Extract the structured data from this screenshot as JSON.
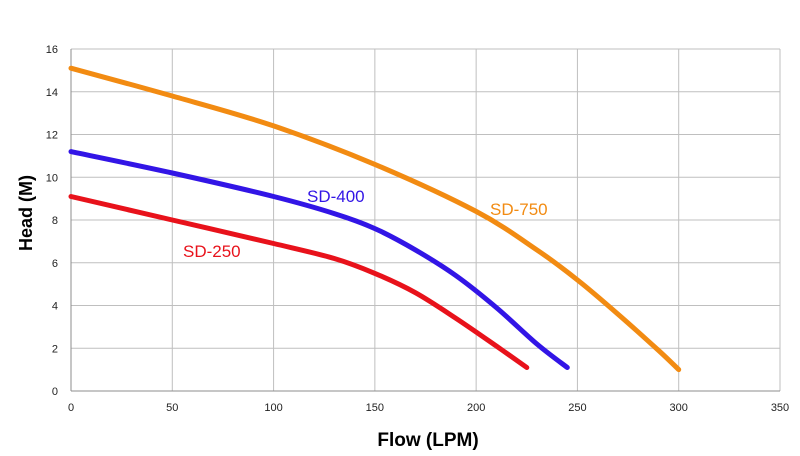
{
  "chart_data": {
    "type": "line",
    "title": "",
    "xlabel": "Flow (LPM)",
    "ylabel": "Head (M)",
    "xlim": [
      0,
      350
    ],
    "ylim": [
      0,
      16
    ],
    "xticks": [
      "0",
      "50",
      "100",
      "150",
      "200",
      "250",
      "300",
      "350"
    ],
    "yticks": [
      "0",
      "2",
      "4",
      "6",
      "8",
      "10",
      "12",
      "14",
      "16"
    ],
    "grid": true,
    "series": [
      {
        "name": "SD-250",
        "color": "#e8121b",
        "x": [
          0,
          50,
          100,
          130,
          150,
          170,
          190,
          210,
          225
        ],
        "y": [
          9.1,
          8.0,
          6.9,
          6.2,
          5.5,
          4.6,
          3.4,
          2.1,
          1.1
        ]
      },
      {
        "name": "SD-400",
        "color": "#3215e6",
        "x": [
          0,
          50,
          100,
          130,
          150,
          170,
          190,
          210,
          230,
          245
        ],
        "y": [
          11.2,
          10.2,
          9.1,
          8.3,
          7.6,
          6.6,
          5.4,
          3.9,
          2.2,
          1.1
        ]
      },
      {
        "name": "SD-750",
        "color": "#f28b12",
        "x": [
          0,
          50,
          100,
          150,
          200,
          230,
          250,
          270,
          290,
          300
        ],
        "y": [
          15.1,
          13.8,
          12.4,
          10.6,
          8.4,
          6.6,
          5.2,
          3.6,
          1.9,
          1.0
        ]
      }
    ]
  }
}
